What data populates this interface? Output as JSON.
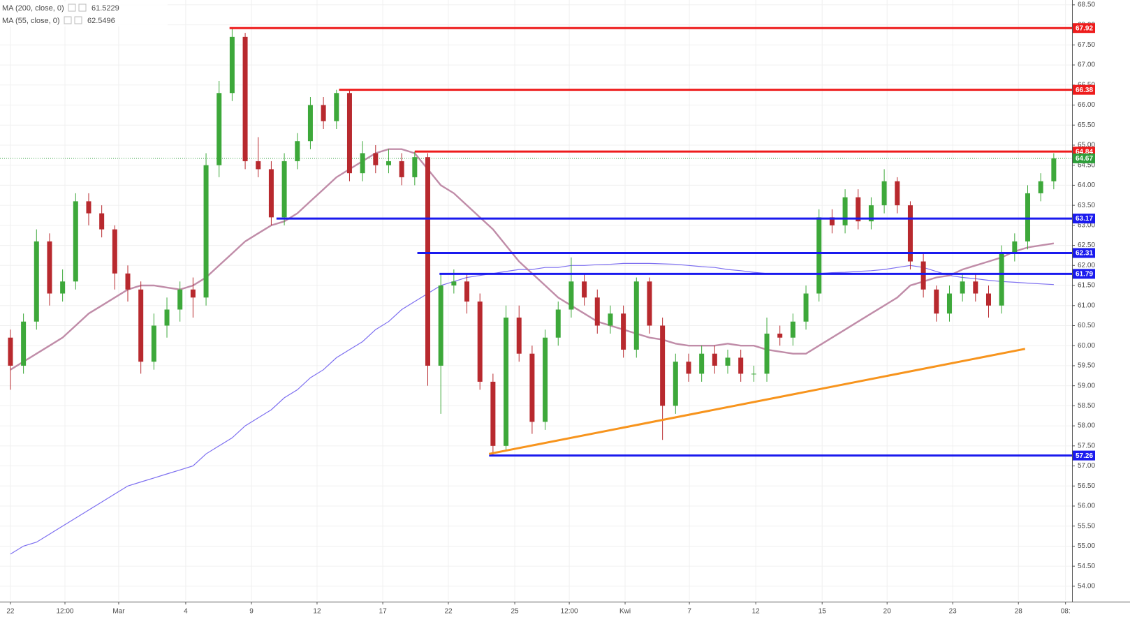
{
  "chart_data": {
    "type": "candlestick",
    "up_color": "#3da83a",
    "down_color": "#b8292e",
    "open": [
      60.2,
      59.5,
      60.6,
      62.6,
      61.3,
      61.6,
      63.6,
      63.3,
      62.9,
      61.8,
      61.4,
      59.6,
      60.5,
      60.9,
      61.4,
      61.2,
      64.5,
      66.3,
      67.7,
      64.6,
      64.4,
      63.2,
      64.6,
      65.1,
      66.0,
      65.6,
      66.3,
      64.3,
      64.8,
      64.5,
      64.6,
      64.2,
      64.7,
      59.5,
      61.5,
      61.6,
      61.1,
      59.1,
      57.5,
      60.7,
      59.8,
      58.1,
      60.2,
      60.9,
      61.6,
      61.2,
      60.5,
      60.8,
      59.9,
      61.6,
      60.5,
      58.5,
      59.6,
      59.3,
      59.8,
      59.5,
      59.7,
      59.3,
      59.3,
      60.3,
      60.2,
      60.6,
      61.3,
      63.2,
      63.0,
      63.7,
      63.1,
      63.5,
      64.1,
      63.5,
      62.1,
      61.4,
      60.8,
      61.3,
      61.6,
      61.3,
      61.0,
      62.3,
      62.6,
      63.8,
      64.1
    ],
    "high": [
      60.4,
      60.8,
      62.9,
      62.8,
      61.9,
      63.8,
      63.8,
      63.5,
      63.0,
      62.0,
      61.6,
      60.8,
      61.2,
      61.6,
      61.7,
      64.8,
      66.6,
      67.92,
      67.8,
      65.2,
      64.6,
      64.8,
      65.3,
      66.2,
      66.2,
      66.38,
      66.4,
      65.1,
      65.0,
      64.9,
      64.8,
      64.84,
      64.8,
      61.8,
      61.9,
      61.8,
      61.3,
      59.3,
      61.0,
      61.0,
      60.0,
      60.4,
      61.1,
      62.2,
      61.8,
      61.4,
      61.0,
      61.0,
      61.7,
      61.7,
      60.7,
      59.8,
      59.8,
      60.0,
      60.0,
      59.9,
      59.9,
      59.5,
      60.7,
      60.5,
      60.8,
      61.5,
      63.4,
      63.4,
      63.9,
      63.9,
      63.7,
      64.4,
      64.2,
      63.6,
      62.3,
      61.5,
      61.5,
      61.8,
      61.8,
      61.5,
      62.5,
      62.8,
      64.0,
      64.3,
      64.8
    ],
    "low": [
      58.9,
      59.3,
      60.4,
      61.0,
      61.1,
      61.4,
      63.0,
      62.7,
      61.4,
      61.1,
      59.3,
      59.4,
      60.2,
      60.6,
      60.7,
      61.0,
      64.2,
      66.1,
      64.4,
      64.2,
      63.0,
      63.0,
      64.4,
      64.9,
      65.4,
      65.4,
      64.1,
      64.1,
      64.3,
      64.3,
      64.0,
      64.0,
      59.0,
      58.3,
      61.3,
      60.8,
      58.9,
      57.26,
      57.4,
      59.6,
      57.8,
      57.9,
      60.0,
      60.7,
      61.0,
      60.3,
      60.3,
      59.7,
      59.7,
      60.3,
      57.65,
      58.3,
      59.1,
      59.1,
      59.3,
      59.3,
      59.1,
      59.1,
      59.1,
      60.0,
      60.0,
      60.4,
      61.1,
      62.8,
      62.8,
      62.9,
      62.9,
      63.3,
      63.3,
      61.9,
      61.2,
      60.6,
      60.6,
      61.1,
      61.1,
      60.7,
      60.8,
      62.1,
      62.4,
      63.6,
      63.9
    ],
    "close": [
      59.5,
      60.6,
      62.6,
      61.3,
      61.6,
      63.6,
      63.3,
      62.9,
      61.8,
      61.4,
      59.6,
      60.5,
      60.9,
      61.4,
      61.2,
      64.5,
      66.3,
      67.7,
      64.6,
      64.4,
      63.2,
      64.6,
      65.1,
      66.0,
      65.6,
      66.3,
      64.3,
      64.8,
      64.5,
      64.6,
      64.2,
      64.7,
      59.5,
      61.5,
      61.6,
      61.1,
      59.1,
      57.5,
      60.7,
      59.8,
      58.1,
      60.2,
      60.9,
      61.6,
      61.2,
      60.5,
      60.8,
      59.9,
      61.6,
      60.5,
      58.5,
      59.6,
      59.3,
      59.8,
      59.5,
      59.7,
      59.3,
      59.3,
      60.3,
      60.2,
      60.6,
      61.3,
      63.2,
      63.0,
      63.7,
      63.1,
      63.5,
      64.1,
      63.5,
      62.1,
      61.4,
      60.8,
      61.3,
      61.6,
      61.3,
      61.0,
      62.3,
      62.6,
      63.8,
      64.1,
      64.67
    ],
    "indicators": [
      {
        "name": "MA (200, close, 0)",
        "color": "#7d6ff0",
        "values": [
          54.8,
          55.0,
          55.1,
          55.3,
          55.5,
          55.7,
          55.9,
          56.1,
          56.3,
          56.5,
          56.6,
          56.7,
          56.8,
          56.9,
          57.0,
          57.3,
          57.5,
          57.7,
          58.0,
          58.2,
          58.4,
          58.7,
          58.9,
          59.2,
          59.4,
          59.7,
          59.9,
          60.1,
          60.4,
          60.6,
          60.9,
          61.1,
          61.3,
          61.5,
          61.6,
          61.7,
          61.75,
          61.8,
          61.85,
          61.9,
          61.9,
          61.95,
          61.95,
          62.0,
          62.0,
          62.02,
          62.03,
          62.05,
          62.05,
          62.05,
          62.04,
          62.03,
          62.0,
          61.97,
          61.95,
          61.9,
          61.87,
          61.83,
          61.8,
          61.8,
          61.8,
          61.8,
          61.8,
          61.82,
          61.83,
          61.85,
          61.87,
          61.9,
          61.95,
          62.0,
          61.95,
          61.85,
          61.75,
          61.7,
          61.67,
          61.63,
          61.6,
          61.58,
          61.56,
          61.54,
          61.5229
        ]
      },
      {
        "name": "MA (55, close, 0)",
        "color": "#b9809f",
        "values": [
          59.4,
          59.6,
          59.8,
          60.0,
          60.2,
          60.5,
          60.8,
          61.0,
          61.2,
          61.4,
          61.5,
          61.5,
          61.45,
          61.4,
          61.5,
          61.7,
          62.0,
          62.3,
          62.6,
          62.8,
          63.0,
          63.1,
          63.3,
          63.6,
          63.9,
          64.2,
          64.4,
          64.6,
          64.8,
          64.9,
          64.9,
          64.8,
          64.4,
          64.0,
          63.8,
          63.5,
          63.2,
          62.9,
          62.5,
          62.1,
          61.8,
          61.5,
          61.2,
          61.0,
          60.8,
          60.6,
          60.5,
          60.4,
          60.3,
          60.2,
          60.15,
          60.05,
          60.0,
          60.0,
          60.0,
          60.05,
          60.0,
          60.0,
          59.9,
          59.85,
          59.8,
          59.8,
          60.0,
          60.2,
          60.4,
          60.6,
          60.8,
          61.0,
          61.2,
          61.5,
          61.6,
          61.7,
          61.75,
          61.9,
          62.0,
          62.1,
          62.2,
          62.35,
          62.45,
          62.5,
          62.5496
        ]
      }
    ],
    "levels": [
      {
        "value": 67.92,
        "color": "#ee1c1c",
        "start": 16.8
      },
      {
        "value": 66.38,
        "color": "#ee1c1c",
        "start": 25.2
      },
      {
        "value": 64.84,
        "color": "#ee1c1c",
        "start": 31.0
      },
      {
        "value": 63.17,
        "color": "#1a1aee",
        "start": 20.4
      },
      {
        "value": 62.31,
        "color": "#1a1aee",
        "start": 31.2
      },
      {
        "value": 61.79,
        "color": "#1a1aee",
        "start": 32.9
      },
      {
        "value": 57.26,
        "color": "#1a1aee",
        "start": 36.7
      }
    ],
    "trendline": {
      "color": "#f7941d",
      "x": [
        36.7,
        77.8
      ],
      "values": [
        57.3,
        59.92
      ]
    },
    "last_color": "#2e9e3a",
    "xlim": [
      -0.8,
      81.4
    ],
    "xticks": [
      {
        "value": 0,
        "label": "22"
      },
      {
        "value": 4.18,
        "label": "12:00"
      },
      {
        "value": 8.3,
        "label": "Mar"
      },
      {
        "value": 13.44,
        "label": "4"
      },
      {
        "value": 18.48,
        "label": "9"
      },
      {
        "value": 23.51,
        "label": "12"
      },
      {
        "value": 28.55,
        "label": "17"
      },
      {
        "value": 33.58,
        "label": "22"
      },
      {
        "value": 38.67,
        "label": "25"
      },
      {
        "value": 42.85,
        "label": "12:00"
      },
      {
        "value": 47.13,
        "label": "Kwi"
      },
      {
        "value": 52.06,
        "label": "7"
      },
      {
        "value": 57.15,
        "label": "12"
      },
      {
        "value": 62.24,
        "label": "15"
      },
      {
        "value": 67.22,
        "label": "20"
      },
      {
        "value": 72.25,
        "label": "23"
      },
      {
        "value": 77.29,
        "label": "28"
      },
      {
        "value": 80.9,
        "label": "08:"
      }
    ],
    "ylim": [
      53.65,
      68.62
    ],
    "yticks": [
      {
        "value": 54,
        "label": "54.00"
      },
      {
        "value": 54.5,
        "label": "54.50"
      },
      {
        "value": 55,
        "label": "55.00"
      },
      {
        "value": 55.5,
        "label": "55.50"
      },
      {
        "value": 56,
        "label": "56.00"
      },
      {
        "value": 56.5,
        "label": "56.50"
      },
      {
        "value": 57,
        "label": "57.00"
      },
      {
        "value": 57.5,
        "label": "57.50"
      },
      {
        "value": 58,
        "label": "58.00"
      },
      {
        "value": 58.5,
        "label": "58.50"
      },
      {
        "value": 59,
        "label": "59.00"
      },
      {
        "value": 59.5,
        "label": "59.50"
      },
      {
        "value": 60,
        "label": "60.00"
      },
      {
        "value": 60.5,
        "label": "60.50"
      },
      {
        "value": 61,
        "label": "61.00"
      },
      {
        "value": 61.5,
        "label": "61.50"
      },
      {
        "value": 62,
        "label": "62.00"
      },
      {
        "value": 62.5,
        "label": "62.50"
      },
      {
        "value": 63,
        "label": "63.00"
      },
      {
        "value": 63.5,
        "label": "63.50"
      },
      {
        "value": 64,
        "label": "64.00"
      },
      {
        "value": 64.5,
        "label": "64.50"
      },
      {
        "value": 65,
        "label": "65.00"
      },
      {
        "value": 65.5,
        "label": "65.50"
      },
      {
        "value": 66,
        "label": "66.00"
      },
      {
        "value": 66.5,
        "label": "66.50"
      },
      {
        "value": 67,
        "label": "67.00"
      },
      {
        "value": 67.5,
        "label": "67.50"
      },
      {
        "value": 68,
        "label": "68.00"
      },
      {
        "value": 68.5,
        "label": "68.50"
      }
    ],
    "grid": true
  }
}
